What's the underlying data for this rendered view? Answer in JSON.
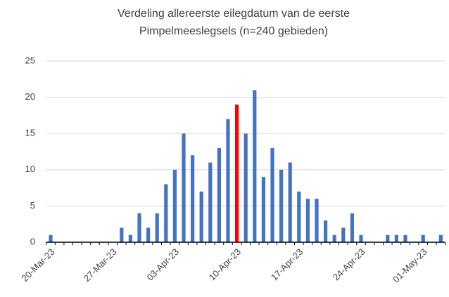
{
  "chart_data": {
    "type": "bar",
    "title": [
      "Verdeling allereerste eilegdatum van de eerste",
      "Pimpelmeeslegsels (n=240 gebieden)"
    ],
    "categories": [
      "20-Mar-23",
      null,
      null,
      null,
      null,
      null,
      null,
      "27-Mar-23",
      null,
      null,
      null,
      null,
      null,
      null,
      "03-Apr-23",
      null,
      null,
      null,
      null,
      null,
      null,
      "10-Apr-23",
      null,
      null,
      null,
      null,
      null,
      null,
      "17-Apr-23",
      null,
      null,
      null,
      null,
      null,
      null,
      "24-Apr-23",
      null,
      null,
      null,
      null,
      null,
      null,
      "01-May-23",
      null,
      null
    ],
    "values": [
      1,
      0,
      0,
      0,
      0,
      0,
      0,
      0,
      2,
      1,
      4,
      2,
      4,
      8,
      10,
      15,
      12,
      7,
      11,
      13,
      17,
      19,
      15,
      21,
      9,
      13,
      10,
      11,
      7,
      6,
      6,
      3,
      1,
      2,
      4,
      1,
      0,
      0,
      1,
      1,
      1,
      0,
      1,
      0,
      1
    ],
    "colors": [
      "#4472c4",
      "#4472c4",
      "#4472c4",
      "#4472c4",
      "#4472c4",
      "#4472c4",
      "#4472c4",
      "#4472c4",
      "#4472c4",
      "#4472c4",
      "#4472c4",
      "#4472c4",
      "#4472c4",
      "#4472c4",
      "#4472c4",
      "#4472c4",
      "#4472c4",
      "#4472c4",
      "#4472c4",
      "#4472c4",
      "#4472c4",
      "#ff0000",
      "#4472c4",
      "#4472c4",
      "#4472c4",
      "#4472c4",
      "#4472c4",
      "#4472c4",
      "#4472c4",
      "#4472c4",
      "#4472c4",
      "#4472c4",
      "#4472c4",
      "#4472c4",
      "#4472c4",
      "#4472c4",
      "#4472c4",
      "#4472c4",
      "#4472c4",
      "#4472c4",
      "#4472c4",
      "#4472c4",
      "#4472c4",
      "#4472c4",
      "#4472c4"
    ],
    "ylim": [
      0,
      25
    ],
    "yticks": [
      0,
      5,
      10,
      15,
      20,
      25
    ],
    "grid": true
  }
}
